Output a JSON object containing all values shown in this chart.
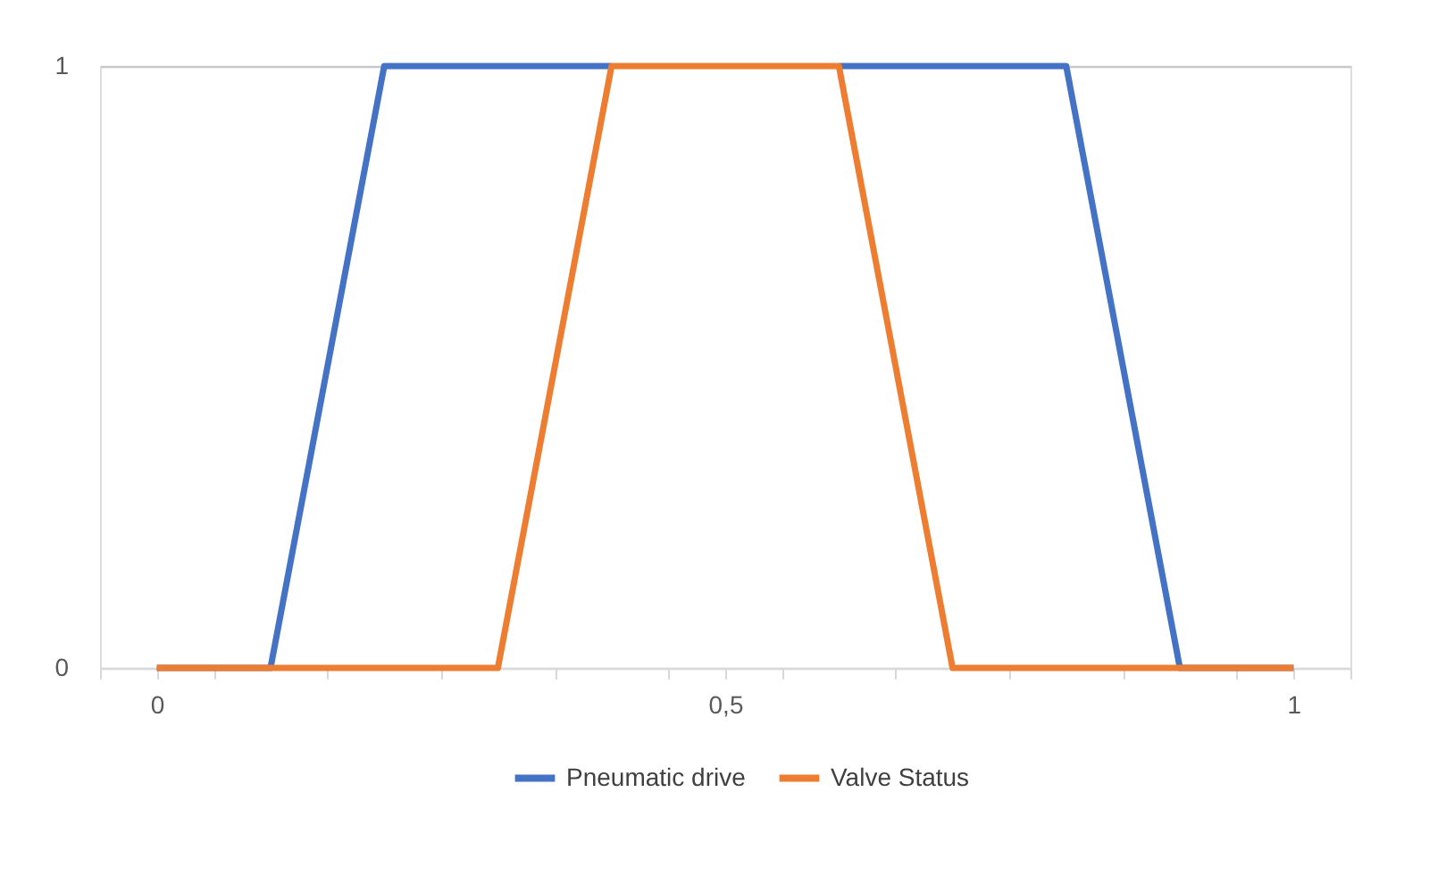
{
  "chart_data": {
    "type": "line",
    "x": [
      0,
      0.1,
      0.2,
      0.3,
      0.4,
      0.5,
      0.6,
      0.7,
      0.8,
      0.9,
      1
    ],
    "series": [
      {
        "name": "Pneumatic drive",
        "color": "#4472c4",
        "values": [
          0,
          0,
          1,
          1,
          1,
          null,
          1,
          1,
          1,
          0,
          0
        ]
      },
      {
        "name": "Valve Status",
        "color": "#ed7d31",
        "values": [
          0,
          0,
          0,
          0,
          1,
          1,
          1,
          0,
          0,
          0,
          0
        ]
      }
    ],
    "xlim": [
      -0.05,
      1.05
    ],
    "xticks": [
      {
        "value": -0.05,
        "label": null
      },
      0,
      {
        "value": 0.05,
        "label": null
      },
      {
        "value": 0.15,
        "label": null
      },
      {
        "value": 0.25,
        "label": null
      },
      {
        "value": 0.35,
        "label": null
      },
      {
        "value": 0.45,
        "label": null
      },
      {
        "value": 0.5,
        "label": "0,5"
      },
      {
        "value": 0.55,
        "label": null
      },
      {
        "value": 0.65,
        "label": null
      },
      {
        "value": 0.75,
        "label": null
      },
      {
        "value": 0.85,
        "label": null
      },
      {
        "value": 0.95,
        "label": null
      },
      1,
      {
        "value": 1.05,
        "label": null
      }
    ],
    "ylim": [
      0,
      1
    ],
    "yticks": [
      0,
      1
    ],
    "grid": "y",
    "legend": "bottom",
    "marker": "none",
    "line_style": "solid"
  }
}
